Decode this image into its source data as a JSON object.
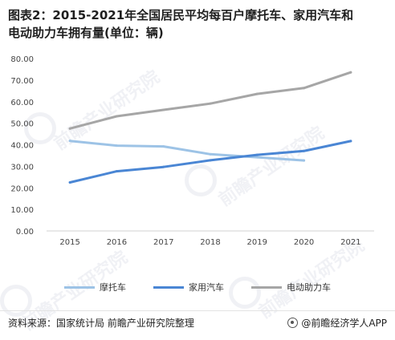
{
  "title_line1": "图表2：2015-2021年全国居民平均每百户摩托车、家用汽车和",
  "title_line2": "电动助力车拥有量(单位：辆)",
  "footer": {
    "source": "资料来源：国家统计局 前瞻产业研究院整理",
    "brand": "@前瞻经济学人APP"
  },
  "watermark": "前瞻产业研究院",
  "chart_data": {
    "type": "line",
    "title": "2015-2021年全国居民平均每百户摩托车、家用汽车和电动助力车拥有量(单位：辆)",
    "x": [
      "2015",
      "2016",
      "2017",
      "2018",
      "2019",
      "2020",
      "2021"
    ],
    "ylim": [
      0,
      80
    ],
    "yticks": [
      "0.00",
      "10.00",
      "20.00",
      "30.00",
      "40.00",
      "50.00",
      "60.00",
      "70.00",
      "80.00"
    ],
    "grid": false,
    "legend": "bottom",
    "series": [
      {
        "name": "摩托车",
        "color": "#9dc3e6",
        "values": [
          41.8,
          39.6,
          39.2,
          35.6,
          34.2,
          32.7,
          null
        ]
      },
      {
        "name": "家用汽车",
        "color": "#4a86d4",
        "values": [
          22.5,
          27.7,
          29.7,
          32.8,
          35.3,
          37.1,
          41.7
        ]
      },
      {
        "name": "电动助力车",
        "color": "#a6a6a6",
        "values": [
          47.5,
          53.2,
          56.2,
          59.1,
          63.6,
          66.3,
          73.6
        ]
      }
    ]
  }
}
